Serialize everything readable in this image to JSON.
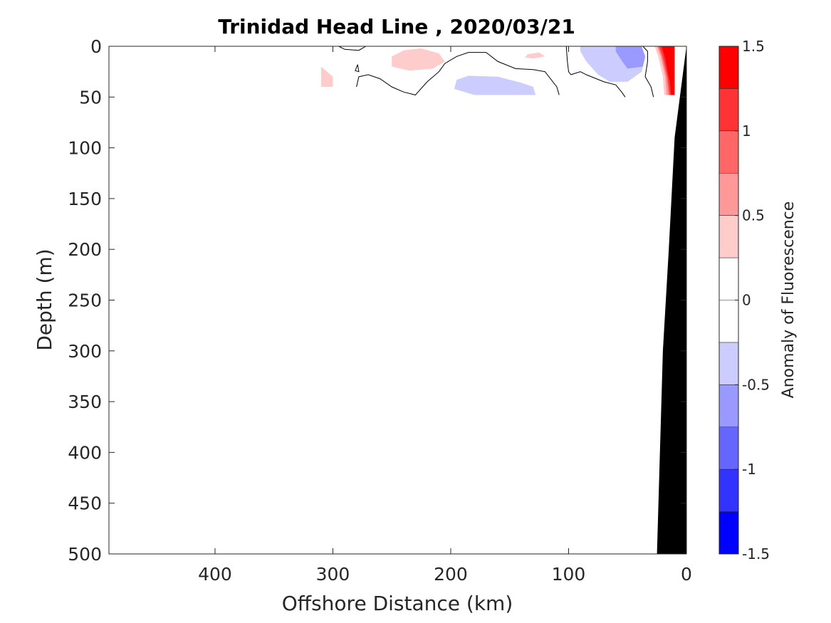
{
  "chart_data": {
    "type": "contour",
    "title": "Trinidad Head Line , 2020/03/21",
    "xlabel": "Offshore Distance (km)",
    "ylabel": "Depth (m)",
    "xlim": [
      490,
      0
    ],
    "ylim": [
      0,
      500
    ],
    "x_reversed": true,
    "y_reversed": true,
    "xticks": [
      "400",
      "300",
      "200",
      "100",
      "0"
    ],
    "xtick_values": [
      400,
      300,
      200,
      100,
      0
    ],
    "yticks": [
      "0",
      "50",
      "100",
      "150",
      "200",
      "250",
      "300",
      "350",
      "400",
      "450",
      "500"
    ],
    "ytick_values": [
      0,
      50,
      100,
      150,
      200,
      250,
      300,
      350,
      400,
      450,
      500
    ],
    "colorbar": {
      "label": "Anomaly of Fluorescence",
      "ticks": [
        "1.5",
        "1",
        "0.5",
        "0",
        "-0.5",
        "-1",
        "-1.5"
      ],
      "tick_values": [
        1.5,
        1,
        0.5,
        0,
        -0.5,
        -1,
        -1.5
      ],
      "levels": [
        -1.5,
        -1.25,
        -1,
        -0.75,
        -0.5,
        -0.25,
        0,
        0.25,
        0.5,
        0.75,
        1,
        1.25,
        1.5
      ],
      "colors": [
        "#0000ff",
        "#3333ff",
        "#6666ff",
        "#9999ff",
        "#ccccff",
        "#ffffff",
        "#ffffff",
        "#ffcccc",
        "#ff9999",
        "#ff6666",
        "#ff3333",
        "#ff0000"
      ]
    },
    "anomaly_regions": [
      {
        "color": "#ffcccc",
        "points": [
          [
            310,
            20
          ],
          [
            300,
            30
          ],
          [
            300,
            40
          ],
          [
            310,
            40
          ]
        ]
      },
      {
        "color": "#ffcccc",
        "points": [
          [
            250,
            10
          ],
          [
            240,
            4
          ],
          [
            225,
            2
          ],
          [
            210,
            7
          ],
          [
            205,
            15
          ],
          [
            215,
            22
          ],
          [
            235,
            24
          ],
          [
            250,
            20
          ]
        ]
      },
      {
        "color": "#ffcccc",
        "points": [
          [
            135,
            8
          ],
          [
            125,
            6
          ],
          [
            120,
            10
          ],
          [
            130,
            12
          ],
          [
            137,
            11
          ]
        ]
      },
      {
        "color": "#ccccff",
        "points": [
          [
            195,
            33
          ],
          [
            185,
            29
          ],
          [
            160,
            30
          ],
          [
            140,
            36
          ],
          [
            130,
            40
          ],
          [
            128,
            48
          ],
          [
            180,
            48
          ],
          [
            197,
            42
          ]
        ]
      },
      {
        "color": "#ccccff",
        "points": [
          [
            90,
            0
          ],
          [
            40,
            0
          ],
          [
            35,
            10
          ],
          [
            38,
            25
          ],
          [
            50,
            35
          ],
          [
            65,
            35
          ],
          [
            75,
            28
          ],
          [
            85,
            15
          ],
          [
            90,
            5
          ]
        ]
      },
      {
        "color": "#9999ff",
        "points": [
          [
            60,
            0
          ],
          [
            38,
            0
          ],
          [
            35,
            10
          ],
          [
            37,
            20
          ],
          [
            50,
            22
          ],
          [
            55,
            14
          ],
          [
            60,
            5
          ]
        ]
      },
      {
        "color": "#ffcccc",
        "points": [
          [
            27,
            0
          ],
          [
            24,
            10
          ],
          [
            22,
            20
          ],
          [
            20,
            30
          ],
          [
            19,
            48
          ],
          [
            15,
            48
          ],
          [
            17,
            0
          ]
        ]
      },
      {
        "color": "#ff9999",
        "points": [
          [
            25,
            0
          ],
          [
            22,
            10
          ],
          [
            20,
            20
          ],
          [
            18,
            30
          ],
          [
            17,
            48
          ],
          [
            14,
            48
          ],
          [
            16,
            0
          ]
        ]
      },
      {
        "color": "#ff6666",
        "points": [
          [
            24,
            0
          ],
          [
            21,
            10
          ],
          [
            19,
            20
          ],
          [
            17,
            30
          ],
          [
            15,
            48
          ],
          [
            13,
            48
          ],
          [
            14,
            0
          ]
        ]
      },
      {
        "color": "#ff3333",
        "points": [
          [
            23,
            0
          ],
          [
            20,
            10
          ],
          [
            18,
            20
          ],
          [
            16,
            30
          ],
          [
            14,
            48
          ],
          [
            11,
            48
          ],
          [
            12,
            0
          ]
        ]
      },
      {
        "color": "#ff0000",
        "points": [
          [
            21,
            0
          ],
          [
            18,
            12
          ],
          [
            16,
            25
          ],
          [
            14,
            35
          ],
          [
            13,
            48
          ],
          [
            10,
            48
          ],
          [
            10,
            0
          ]
        ]
      }
    ],
    "zero_contours": [
      [
        [
          295,
          0
        ],
        [
          290,
          3
        ],
        [
          278,
          4
        ],
        [
          272,
          0
        ]
      ],
      [
        [
          279,
          18
        ],
        [
          281,
          24
        ],
        [
          278,
          25
        ],
        [
          279,
          18
        ]
      ],
      [
        [
          280,
          40
        ],
        [
          278,
          30
        ],
        [
          270,
          28
        ],
        [
          260,
          32
        ],
        [
          250,
          40
        ],
        [
          240,
          45
        ],
        [
          230,
          48
        ],
        [
          220,
          35
        ],
        [
          210,
          25
        ],
        [
          205,
          17
        ],
        [
          195,
          10
        ],
        [
          185,
          6
        ],
        [
          170,
          6
        ],
        [
          160,
          15
        ],
        [
          145,
          22
        ],
        [
          130,
          23
        ],
        [
          120,
          25
        ],
        [
          110,
          40
        ],
        [
          108,
          48
        ]
      ],
      [
        [
          102,
          0
        ],
        [
          101,
          15
        ],
        [
          100,
          25
        ],
        [
          98,
          28
        ],
        [
          90,
          25
        ],
        [
          85,
          28
        ],
        [
          70,
          35
        ],
        [
          60,
          38
        ],
        [
          55,
          45
        ],
        [
          52,
          50
        ]
      ],
      [
        [
          37,
          0
        ],
        [
          33,
          5
        ],
        [
          33,
          15
        ],
        [
          35,
          30
        ],
        [
          30,
          40
        ],
        [
          28,
          50
        ]
      ]
    ],
    "bathymetry": [
      [
        0,
        0
      ],
      [
        10,
        90
      ],
      [
        15,
        200
      ],
      [
        20,
        300
      ],
      [
        25,
        500
      ],
      [
        0,
        500
      ]
    ]
  }
}
